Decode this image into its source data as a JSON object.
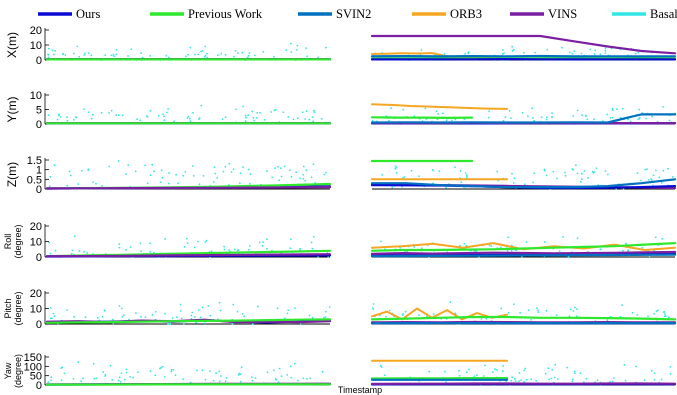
{
  "chart_data": {
    "type": "line",
    "legend": {
      "placement": "top",
      "entries": [
        {
          "name": "Ours",
          "color": "#0a0ad2"
        },
        {
          "name": "Previous Work",
          "color": "#2ee82e"
        },
        {
          "name": "SVIN2",
          "color": "#0070c0"
        },
        {
          "name": "ORB3",
          "color": "#f5a623"
        },
        {
          "name": "VINS",
          "color": "#7b1fa2"
        },
        {
          "name": "Basalt",
          "color": "#33e6e6"
        }
      ]
    },
    "xlabel": "Timestamp",
    "panels": [
      {
        "id": "x",
        "ylabel": "X(m)",
        "ylabel_lines": [
          "X(m)"
        ],
        "yticks": [
          "0",
          "10",
          "20"
        ],
        "ylim": [
          0,
          20
        ],
        "series": {
          "basalt_scatter": {
            "left_mean": 3,
            "left_spread": 14,
            "right_mean": 3,
            "right_spread": 12
          },
          "left": [
            {
              "name": "Ours",
              "values": [
                0.5,
                0.5
              ]
            },
            {
              "name": "VINS",
              "values": [
                0.6,
                0.6
              ]
            },
            {
              "name": "Previous Work",
              "values": [
                0.4,
                0.4
              ]
            }
          ],
          "right": [
            {
              "name": "VINS",
              "values": [
                16,
                16,
                16,
                16,
                16,
                16,
                12.5,
                9,
                6,
                4.5
              ]
            },
            {
              "name": "ORB3",
              "values": [
                4,
                4.2,
                4.5,
                4.3,
                4.6,
                2.5,
                2,
                2.2,
                1.5,
                1
              ]
            },
            {
              "name": "Previous Work",
              "values": [
                1,
                1,
                1.1,
                1,
                1,
                1.2,
                1.1,
                1,
                1,
                1
              ]
            },
            {
              "name": "Ours",
              "values": [
                0.4,
                0.4,
                0.5,
                0.5,
                0.6,
                0.5,
                0.4,
                0.5,
                0.5,
                0.4
              ]
            },
            {
              "name": "SVIN2",
              "values": [
                2.5,
                2.6,
                2.4,
                2.6,
                2.5,
                2.7,
                2.4,
                2.5,
                2.4,
                2.5
              ]
            }
          ]
        }
      },
      {
        "id": "y",
        "ylabel": "Y(m)",
        "ylabel_lines": [
          "Y(m)"
        ],
        "yticks": [
          "0",
          "5",
          "10"
        ],
        "ylim": [
          0,
          10
        ],
        "series": {
          "basalt_scatter": {
            "left_mean": 3,
            "left_spread": 6,
            "right_mean": 3,
            "right_spread": 6
          },
          "left": [
            {
              "name": "Ours",
              "values": [
                0.2,
                0.2
              ]
            },
            {
              "name": "VINS",
              "values": [
                0.3,
                0.3
              ]
            },
            {
              "name": "Previous Work",
              "values": [
                0.25,
                0.25
              ]
            }
          ],
          "right": [
            {
              "name": "ORB3",
              "values": [
                6.8,
                6.6,
                6.2,
                6.0,
                5.8,
                5.5,
                5.3,
                5.2
              ]
            },
            {
              "name": "Previous Work",
              "values": [
                2.3,
                2.2,
                2.2,
                2.1,
                2.2
              ]
            },
            {
              "name": "Ours",
              "values": [
                0.2,
                0.2,
                0.3,
                0.2,
                0.2,
                0.3,
                0.2,
                0.2,
                0.2,
                0.3
              ]
            },
            {
              "name": "VINS",
              "values": [
                0.3,
                0.3,
                0.3,
                0.4,
                0.3,
                0.3,
                0.3,
                0.3,
                0.3,
                0.3
              ]
            },
            {
              "name": "SVIN2",
              "values": [
                0.5,
                0.6,
                0.5,
                0.6,
                0.5,
                0.5,
                0.6,
                0.5,
                3.3,
                3.3
              ]
            }
          ]
        }
      },
      {
        "id": "z",
        "ylabel": "Z(m)",
        "ylabel_lines": [
          "Z(m)"
        ],
        "yticks": [
          "0",
          "0.5",
          "1",
          "1.5"
        ],
        "ylim": [
          0,
          1.5
        ],
        "series": {
          "basalt_scatter": {
            "left_mean": 0.9,
            "left_spread": 1.0,
            "right_mean": 0.8,
            "right_spread": 0.9
          },
          "left": [
            {
              "name": "Ours",
              "values": [
                0.02,
                0.04,
                0.05,
                0.07,
                0.1,
                0.14
              ]
            },
            {
              "name": "Previous Work",
              "values": [
                0.03,
                0.05,
                0.08,
                0.12,
                0.18,
                0.26
              ]
            },
            {
              "name": "VINS",
              "values": [
                0.03,
                0.04,
                0.05,
                0.06,
                0.08,
                0.1
              ]
            }
          ],
          "right": [
            {
              "name": "Previous Work",
              "values": [
                1.45,
                1.45,
                1.45,
                1.45,
                1.45
              ]
            },
            {
              "name": "ORB3",
              "values": [
                0.5,
                0.5,
                0.5,
                0.5,
                0.5,
                0.5
              ]
            },
            {
              "name": "VINS",
              "values": [
                0.25,
                0.23,
                0.2,
                0.18,
                0.16,
                0.14,
                0.12,
                0.1,
                0.08,
                0.05
              ]
            },
            {
              "name": "Ours",
              "values": [
                0.2,
                0.19,
                0.18,
                0.15,
                0.1,
                0.05,
                0.05,
                0.06,
                0.1,
                0.15
              ]
            },
            {
              "name": "SVIN2",
              "values": [
                0.3,
                0.3,
                0.2,
                0.15,
                0.1,
                0.1,
                0.1,
                0.15,
                0.3,
                0.5
              ]
            }
          ]
        }
      },
      {
        "id": "roll",
        "ylabel": "Roll (degree)",
        "ylabel_lines": [
          "Roll",
          "(degree)"
        ],
        "yticks": [
          "0",
          "10",
          "20"
        ],
        "ylim": [
          0,
          20
        ],
        "series": {
          "basalt_scatter": {
            "left_mean": 6,
            "left_spread": 16,
            "right_mean": 6,
            "right_spread": 16
          },
          "left": [
            {
              "name": "Previous Work",
              "values": [
                0.5,
                1,
                1.5,
                2,
                2.5,
                3,
                3.5,
                4
              ]
            },
            {
              "name": "Ours",
              "values": [
                0.3,
                0.4,
                0.5,
                0.6,
                0.7,
                0.8,
                0.9,
                1.0
              ]
            },
            {
              "name": "VINS",
              "values": [
                0.5,
                0.6,
                0.8,
                1,
                1.2,
                1.4,
                1.6,
                1.8
              ]
            }
          ],
          "right": [
            {
              "name": "ORB3",
              "values": [
                6,
                7,
                8.5,
                6,
                9,
                5,
                7,
                5.5,
                8,
                4.5,
                6
              ]
            },
            {
              "name": "Previous Work",
              "values": [
                4,
                4.5,
                4.5,
                4.8,
                5,
                5.5,
                6,
                6.5,
                7,
                8,
                9
              ]
            },
            {
              "name": "Ours",
              "values": [
                1,
                1.1,
                1.2,
                1.3,
                1.4,
                1.5,
                1.6,
                1.7,
                1.8,
                2.0,
                2.2
              ]
            },
            {
              "name": "VINS",
              "values": [
                2,
                2.5,
                2.2,
                2.5,
                2.8,
                2.6,
                2.4,
                2.5,
                2.7,
                3,
                3.2
              ]
            },
            {
              "name": "SVIN2",
              "values": [
                0.5,
                0.6,
                0.7,
                0.8,
                0.9,
                1.0,
                1.1,
                1.2,
                1.3,
                1.4,
                1.5
              ]
            }
          ]
        }
      },
      {
        "id": "pitch",
        "ylabel": "Pitch (degree)",
        "ylabel_lines": [
          "Pitch",
          "(degree)"
        ],
        "yticks": [
          "0",
          "10",
          "20"
        ],
        "ylim": [
          0,
          20
        ],
        "series": {
          "basalt_scatter": {
            "left_mean": 6,
            "left_spread": 16,
            "right_mean": 6,
            "right_spread": 16
          },
          "left": [
            {
              "name": "Ours",
              "values": [
                1,
                1.2,
                1.5,
                2,
                1.5,
                2.5,
                1.5,
                1,
                1.5,
                2
              ]
            },
            {
              "name": "VINS",
              "values": [
                1.5,
                1.8,
                1.2,
                2.2,
                1.8,
                2.8,
                1.2,
                1.5,
                1.2,
                1.8
              ]
            },
            {
              "name": "Previous Work",
              "values": [
                0.8,
                1,
                1.2,
                1.5,
                1.8,
                2,
                2.2,
                2.5,
                2.8,
                3
              ]
            }
          ],
          "right": [
            {
              "name": "ORB3",
              "values": [
                5,
                8,
                3,
                10,
                4,
                9,
                3,
                7,
                4,
                6
              ]
            },
            {
              "name": "Previous Work",
              "values": [
                3,
                3.5,
                4,
                4.5,
                4.5,
                4,
                4,
                3.8,
                3.5,
                3
              ]
            },
            {
              "name": "Ours",
              "values": [
                0.5,
                0.6,
                0.8,
                0.7,
                0.6,
                0.5,
                0.6,
                0.5,
                0.6,
                0.5
              ]
            },
            {
              "name": "VINS",
              "values": [
                1,
                1.2,
                1.1,
                1.3,
                1.2,
                1.0,
                1.1,
                1.2,
                1.0,
                1.1
              ]
            },
            {
              "name": "SVIN2",
              "values": [
                0.5,
                0.6,
                0.5,
                0.6,
                0.5,
                0.6,
                0.5,
                0.6,
                0.5,
                0.6
              ]
            }
          ]
        }
      },
      {
        "id": "yaw",
        "ylabel": "Yaw (degree)",
        "ylabel_lines": [
          "Yaw",
          "(degree)"
        ],
        "yticks": [
          "0",
          "50",
          "100",
          "150"
        ],
        "ylim": [
          0,
          150
        ],
        "series": {
          "basalt_scatter": {
            "left_mean": 60,
            "left_spread": 110,
            "right_mean": 60,
            "right_spread": 110
          },
          "left": [
            {
              "name": "Ours",
              "values": [
                2,
                3,
                3,
                4,
                4,
                5
              ]
            },
            {
              "name": "VINS",
              "values": [
                3,
                4,
                5,
                6,
                6,
                7
              ]
            },
            {
              "name": "Previous Work",
              "values": [
                2,
                2,
                3,
                3,
                3,
                4
              ]
            }
          ],
          "right": [
            {
              "name": "ORB3",
              "values": [
                130,
                130,
                130,
                130,
                130,
                130
              ]
            },
            {
              "name": "Previous Work",
              "values": [
                35,
                36,
                36,
                37,
                37
              ]
            },
            {
              "name": "SVIN2",
              "values": [
                28,
                28,
                28,
                28,
                28
              ]
            },
            {
              "name": "Ours",
              "values": [
                3,
                4,
                4,
                5,
                5,
                4,
                4,
                5,
                5,
                4
              ]
            },
            {
              "name": "VINS",
              "values": [
                6,
                7,
                7,
                8,
                8,
                7,
                7,
                8,
                8,
                7
              ]
            }
          ]
        }
      }
    ]
  }
}
